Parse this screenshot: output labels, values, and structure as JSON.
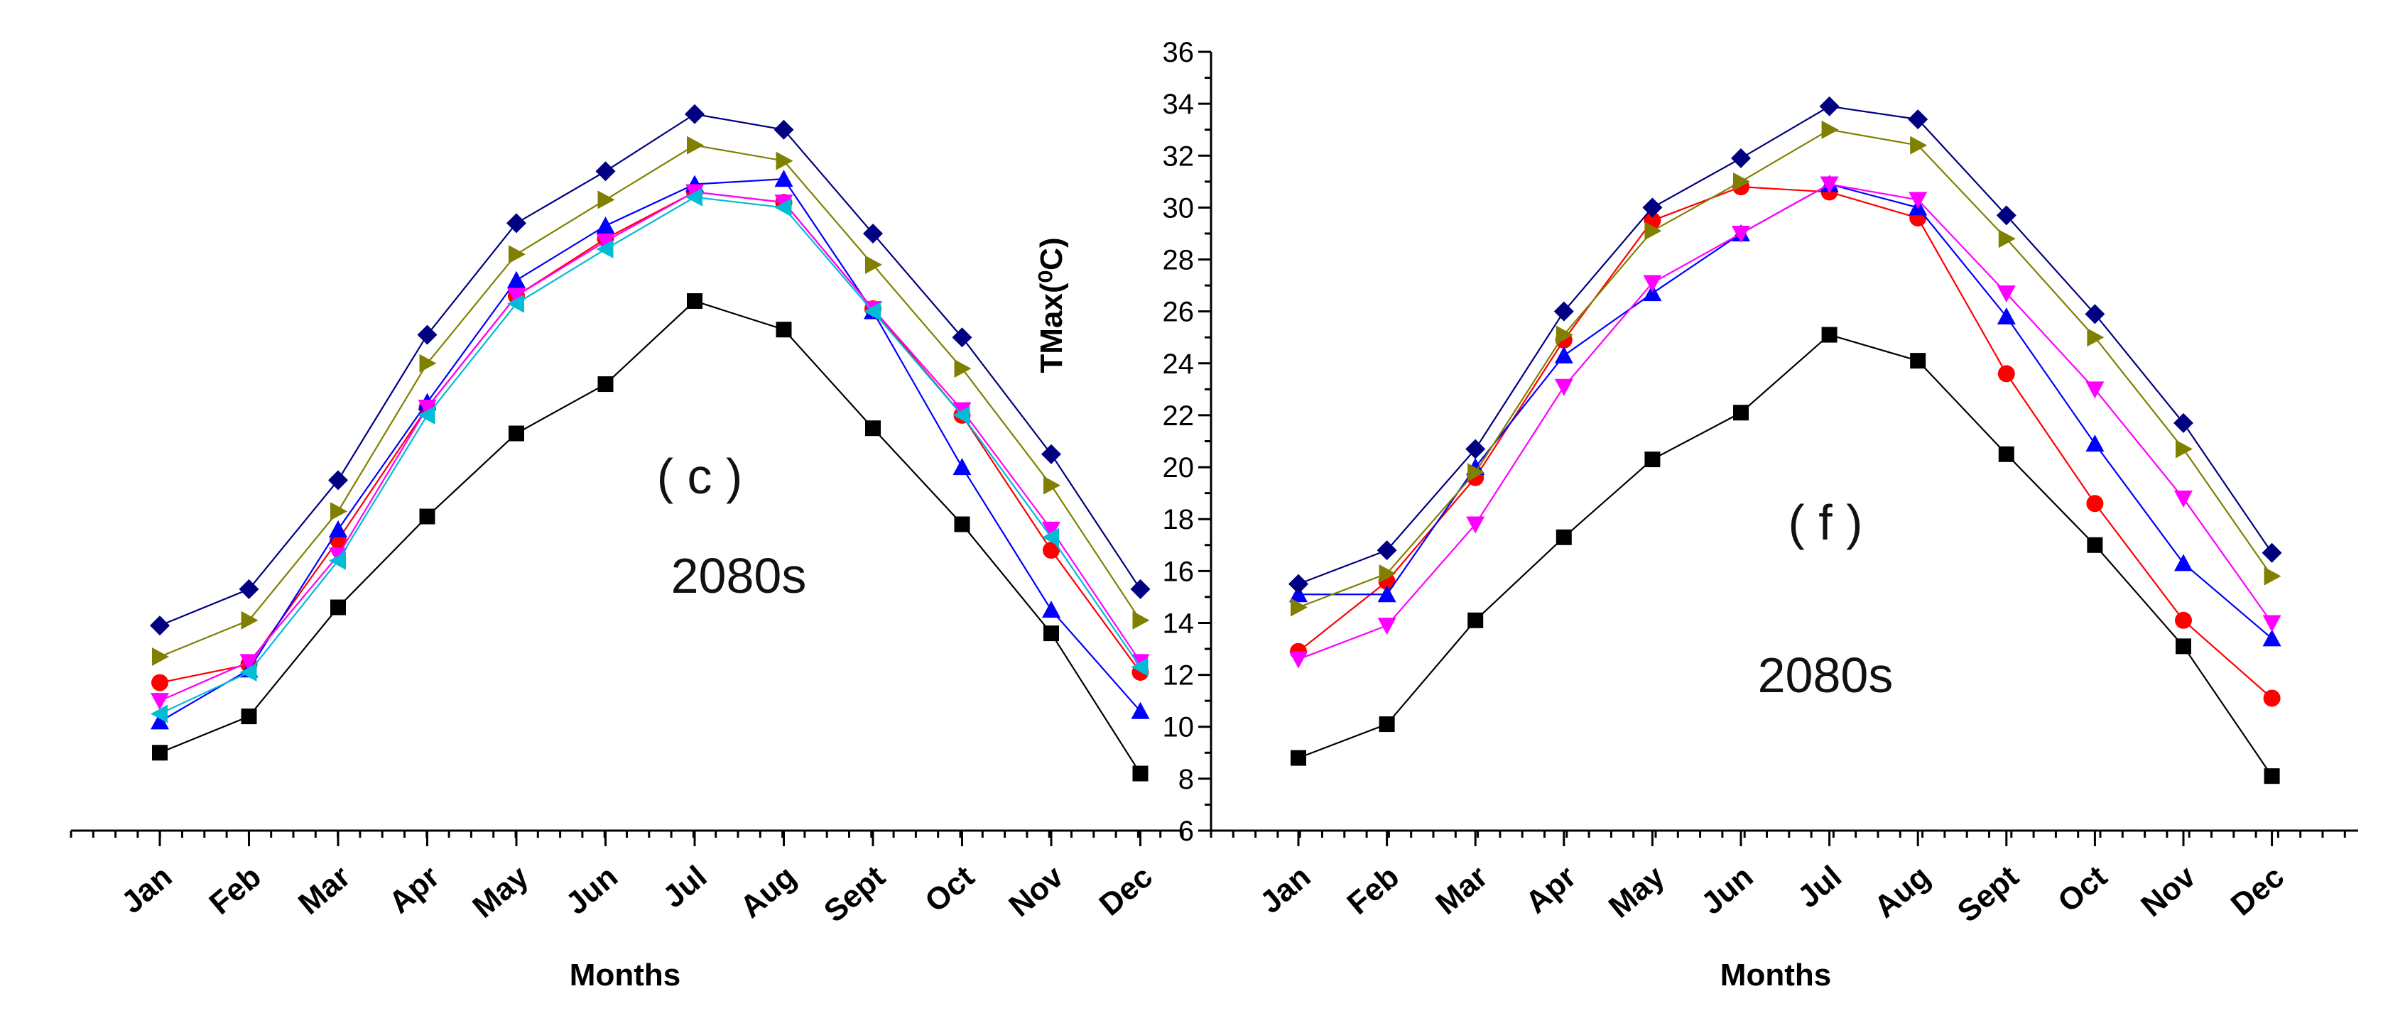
{
  "colors": {
    "s1": "#000000",
    "s2": "#ff0000",
    "s3": "#0000ff",
    "s4": "#ff00ff",
    "s5": "#808000",
    "s6": "#000080",
    "s7": "#00bcd4"
  },
  "chart_data": [
    {
      "type": "line",
      "panel": "c",
      "categories": [
        "Jan",
        "Feb",
        "Mar",
        "Apr",
        "May",
        "Jun",
        "Jul",
        "Aug",
        "Sept",
        "Oct",
        "Nov",
        "Dec"
      ],
      "xlabel": "Months",
      "ylabel": "",
      "ylim": [
        6,
        36
      ],
      "annotations": [
        "( c )",
        "2080s"
      ],
      "series": [
        {
          "marker": "square",
          "color_key": "s1",
          "values": [
            9.0,
            10.4,
            14.6,
            18.1,
            21.3,
            23.2,
            26.4,
            25.3,
            21.5,
            17.8,
            13.6,
            8.2
          ]
        },
        {
          "marker": "circle",
          "color_key": "s2",
          "values": [
            11.7,
            12.4,
            17.2,
            22.3,
            26.6,
            28.8,
            30.6,
            30.2,
            26.1,
            22.0,
            16.8,
            12.1
          ]
        },
        {
          "marker": "triangle-up",
          "color_key": "s3",
          "values": [
            10.2,
            12.2,
            17.6,
            22.5,
            27.2,
            29.3,
            30.9,
            31.1,
            26.0,
            20.0,
            14.5,
            10.6
          ]
        },
        {
          "marker": "triangle-down",
          "color_key": "s4",
          "values": [
            11.0,
            12.5,
            16.6,
            22.3,
            26.6,
            28.7,
            30.6,
            30.2,
            26.1,
            22.2,
            17.6,
            12.5
          ]
        },
        {
          "marker": "triangle-right",
          "color_key": "s5",
          "values": [
            12.7,
            14.1,
            18.3,
            24.0,
            28.2,
            30.3,
            32.4,
            31.8,
            27.8,
            23.8,
            19.3,
            14.1
          ]
        },
        {
          "marker": "diamond",
          "color_key": "s6",
          "values": [
            13.9,
            15.3,
            19.5,
            25.1,
            29.4,
            31.4,
            33.6,
            33.0,
            29.0,
            25.0,
            20.5,
            15.3
          ]
        },
        {
          "marker": "triangle-left",
          "color_key": "s7",
          "values": [
            10.5,
            12.1,
            16.4,
            22.0,
            26.3,
            28.4,
            30.4,
            30.0,
            26.0,
            22.0,
            17.3,
            12.3
          ]
        }
      ]
    },
    {
      "type": "line",
      "panel": "f",
      "categories": [
        "Jan",
        "Feb",
        "Mar",
        "Apr",
        "May",
        "Jun",
        "Jul",
        "Aug",
        "Sept",
        "Oct",
        "Nov",
        "Dec"
      ],
      "xlabel": "Months",
      "ylabel": "TMax(⁰C)",
      "yticks": [
        "6",
        "8",
        "10",
        "12",
        "14",
        "16",
        "18",
        "20",
        "22",
        "24",
        "26",
        "28",
        "30",
        "32",
        "34",
        "36"
      ],
      "ylim": [
        6,
        36
      ],
      "annotations": [
        "( f )",
        "2080s"
      ],
      "series": [
        {
          "marker": "square",
          "color_key": "s1",
          "values": [
            8.8,
            10.1,
            14.1,
            17.3,
            20.3,
            22.1,
            25.1,
            24.1,
            20.5,
            17.0,
            13.1,
            8.1
          ]
        },
        {
          "marker": "circle",
          "color_key": "s2",
          "values": [
            12.9,
            15.6,
            19.6,
            24.9,
            29.5,
            30.8,
            30.6,
            29.6,
            23.6,
            18.6,
            14.1,
            11.1
          ]
        },
        {
          "marker": "triangle-up",
          "color_key": "s3",
          "values": [
            15.1,
            15.1,
            20.0,
            24.3,
            26.7,
            29.0,
            30.9,
            30.0,
            25.8,
            20.9,
            16.3,
            13.4
          ]
        },
        {
          "marker": "triangle-down",
          "color_key": "s4",
          "values": [
            12.6,
            13.9,
            17.8,
            23.1,
            27.1,
            29.0,
            30.9,
            30.3,
            26.7,
            23.0,
            18.8,
            14.0
          ]
        },
        {
          "marker": "triangle-right",
          "color_key": "s5",
          "values": [
            14.6,
            15.9,
            19.8,
            25.1,
            29.1,
            31.0,
            33.0,
            32.4,
            28.8,
            25.0,
            20.7,
            15.8
          ]
        },
        {
          "marker": "diamond",
          "color_key": "s6",
          "values": [
            15.5,
            16.8,
            20.7,
            26.0,
            30.0,
            31.9,
            33.9,
            33.4,
            29.7,
            25.9,
            21.7,
            16.7
          ]
        }
      ]
    }
  ]
}
